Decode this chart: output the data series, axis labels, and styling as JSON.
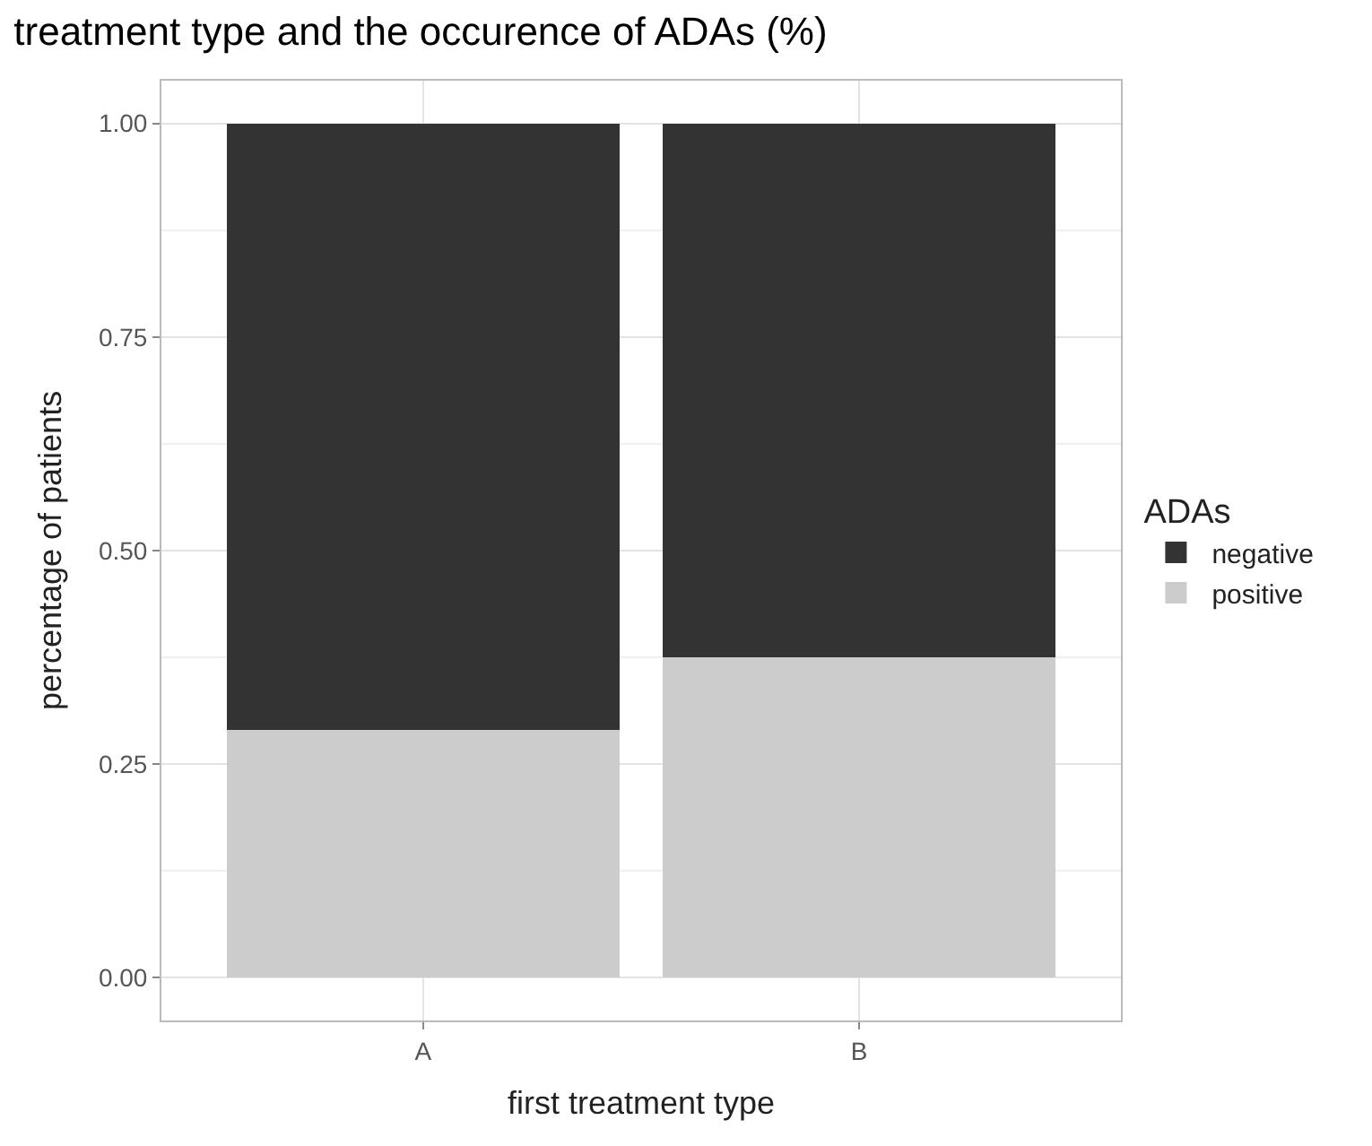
{
  "chart_data": {
    "type": "bar",
    "stacked": true,
    "title": "treatment type and the occurence of ADAs (%)",
    "xlabel": "first treatment type",
    "ylabel": "percentage of patients",
    "legend_title": "ADAs",
    "categories": [
      "A",
      "B"
    ],
    "series": [
      {
        "name": "positive",
        "color": "#cccccc",
        "values": [
          0.29,
          0.375
        ]
      },
      {
        "name": "negative",
        "color": "#333333",
        "values": [
          0.71,
          0.625
        ]
      }
    ],
    "ylim": [
      -0.05,
      1.05
    ],
    "yticks": [
      {
        "value": 0,
        "label": "0.00"
      },
      {
        "value": 0.25,
        "label": "0.25"
      },
      {
        "value": 0.5,
        "label": "0.50"
      },
      {
        "value": 0.75,
        "label": "0.75"
      },
      {
        "value": 1,
        "label": "1.00"
      }
    ],
    "grid": true,
    "legend": "right"
  }
}
